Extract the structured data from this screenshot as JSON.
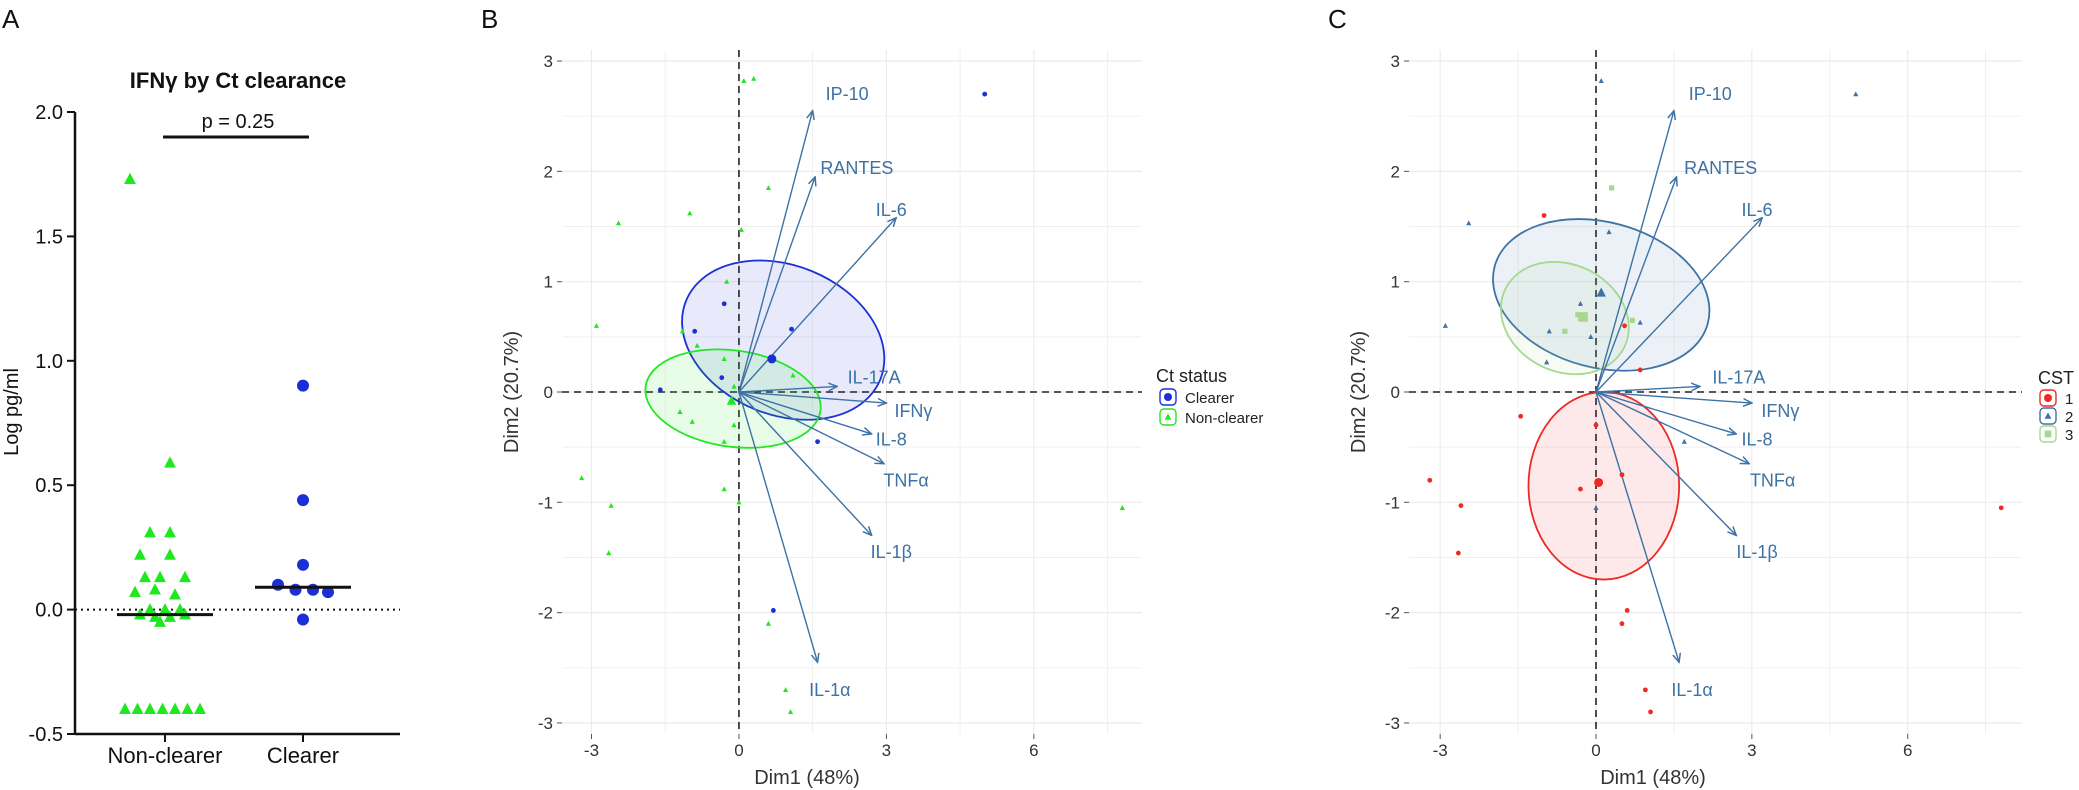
{
  "panels": {
    "a": "A",
    "b": "B",
    "c": "C"
  },
  "colors": {
    "green": "#1ee81e",
    "blue": "#1a2fd6",
    "arrow": "#3d72a5",
    "red": "#ee2a24",
    "cst2": "#3d72a5",
    "cst3": "#a6d98f",
    "black": "#111111"
  },
  "chart_data": [
    {
      "type": "scatter",
      "panel": "A",
      "title": "IFNγ by Ct clearance",
      "ylabel": "Log pg/ml",
      "xlabel": "",
      "ylim": [
        -0.5,
        2.0
      ],
      "yticks": [
        "-0.5",
        "0.0",
        "0.5",
        "1.0",
        "1.5",
        "2.0"
      ],
      "categories": [
        "Non-clearer",
        "Clearer"
      ],
      "annotation": "p = 0.25",
      "reference_line": 0.0,
      "series": [
        {
          "name": "Non-clearer",
          "marker": "triangle",
          "color": "green",
          "median": -0.02,
          "points": [
            [
              -0.7,
              1.73
            ],
            [
              0.1,
              0.59
            ],
            [
              -0.3,
              0.31
            ],
            [
              0.1,
              0.31
            ],
            [
              -0.5,
              0.22
            ],
            [
              0.1,
              0.22
            ],
            [
              -0.4,
              0.13
            ],
            [
              -0.1,
              0.13
            ],
            [
              0.4,
              0.13
            ],
            [
              -0.2,
              0.08
            ],
            [
              -0.6,
              0.07
            ],
            [
              0.2,
              0.06
            ],
            [
              -0.3,
              0.0
            ],
            [
              0.0,
              0.0
            ],
            [
              0.3,
              0.0
            ],
            [
              -0.5,
              -0.02
            ],
            [
              -0.2,
              -0.03
            ],
            [
              0.1,
              -0.03
            ],
            [
              -0.1,
              -0.05
            ],
            [
              0.4,
              -0.02
            ],
            [
              -0.8,
              -0.4
            ],
            [
              -0.55,
              -0.4
            ],
            [
              -0.3,
              -0.4
            ],
            [
              -0.05,
              -0.4
            ],
            [
              0.2,
              -0.4
            ],
            [
              0.45,
              -0.4
            ],
            [
              0.7,
              -0.4
            ]
          ]
        },
        {
          "name": "Clearer",
          "marker": "circle",
          "color": "blue",
          "median": 0.09,
          "points": [
            [
              0.0,
              0.9
            ],
            [
              0.0,
              0.44
            ],
            [
              0.0,
              0.18
            ],
            [
              -0.5,
              0.1
            ],
            [
              -0.15,
              0.08
            ],
            [
              0.2,
              0.08
            ],
            [
              0.5,
              0.07
            ],
            [
              0.0,
              -0.04
            ]
          ]
        }
      ]
    },
    {
      "type": "scatter",
      "panel": "B",
      "subtype": "pca-biplot",
      "xlabel": "Dim1 (48%)",
      "ylabel": "Dim2 (20.7%)",
      "xlim": [
        -3.6,
        8.2
      ],
      "ylim": [
        -3.1,
        3.1
      ],
      "xticks": [
        "-3",
        "0",
        "3",
        "6"
      ],
      "yticks": [
        "-3",
        "-2",
        "-1",
        "0",
        "1",
        "2",
        "3"
      ],
      "legend_title": "Ct status",
      "legend": [
        "Clearer",
        "Non-clearer"
      ],
      "arrows": [
        {
          "label": "IP-10",
          "x": 1.5,
          "y": 2.55,
          "lx": 2.2,
          "ly": 2.7
        },
        {
          "label": "RANTES",
          "x": 1.55,
          "y": 1.95,
          "lx": 2.4,
          "ly": 2.03
        },
        {
          "label": "IL-6",
          "x": 3.2,
          "y": 1.58,
          "lx": 3.1,
          "ly": 1.65
        },
        {
          "label": "IL-17A",
          "x": 2.0,
          "y": 0.05,
          "lx": 2.75,
          "ly": 0.13
        },
        {
          "label": "IFNγ",
          "x": 3.0,
          "y": -0.1,
          "lx": 3.55,
          "ly": -0.17
        },
        {
          "label": "IL-8",
          "x": 2.7,
          "y": -0.38,
          "lx": 3.1,
          "ly": -0.43
        },
        {
          "label": "TNFα",
          "x": 2.95,
          "y": -0.65,
          "lx": 3.4,
          "ly": -0.8
        },
        {
          "label": "IL-1β",
          "x": 2.7,
          "y": -1.3,
          "lx": 3.1,
          "ly": -1.45
        },
        {
          "label": "IL-1α",
          "x": 1.6,
          "y": -2.45,
          "lx": 1.85,
          "ly": -2.7
        }
      ],
      "ellipses": [
        {
          "group": "Clearer",
          "cx": 0.9,
          "cy": 0.47,
          "rx": 1.52,
          "ry": 0.95,
          "angle": -68
        },
        {
          "group": "Non-clearer",
          "cx": -0.12,
          "cy": -0.06,
          "rx": 0.98,
          "ry": 0.8,
          "angle": -82
        }
      ],
      "series": [
        {
          "name": "Clearer",
          "marker": "circle",
          "color": "blue",
          "points": [
            [
              -1.6,
              0.02
            ],
            [
              -0.9,
              0.55
            ],
            [
              -0.3,
              0.8
            ],
            [
              -0.35,
              0.13
            ],
            [
              0.65,
              0.3
            ],
            [
              1.07,
              0.57
            ],
            [
              1.6,
              -0.45
            ],
            [
              0.7,
              -1.98
            ],
            [
              5.0,
              2.7
            ]
          ],
          "centroid": [
            0.67,
            0.3
          ]
        },
        {
          "name": "Non-clearer",
          "marker": "triangle",
          "color": "green",
          "points": [
            [
              0.1,
              2.82
            ],
            [
              0.3,
              2.84
            ],
            [
              0.6,
              1.85
            ],
            [
              -1.0,
              1.62
            ],
            [
              -2.45,
              1.53
            ],
            [
              0.05,
              1.47
            ],
            [
              -0.25,
              1.0
            ],
            [
              -2.9,
              0.6
            ],
            [
              -1.15,
              0.55
            ],
            [
              -0.85,
              0.42
            ],
            [
              -0.3,
              0.3
            ],
            [
              -0.1,
              0.05
            ],
            [
              -1.2,
              -0.18
            ],
            [
              -0.95,
              -0.27
            ],
            [
              -0.1,
              -0.3
            ],
            [
              -0.3,
              -0.45
            ],
            [
              -3.2,
              -0.78
            ],
            [
              -0.3,
              -0.88
            ],
            [
              -2.6,
              -1.03
            ],
            [
              -2.65,
              -1.46
            ],
            [
              0.0,
              -1.0
            ],
            [
              0.6,
              -2.1
            ],
            [
              0.95,
              -2.7
            ],
            [
              1.05,
              -2.9
            ],
            [
              7.8,
              -1.05
            ],
            [
              1.1,
              0.15
            ]
          ],
          "centroid": [
            -0.15,
            -0.08
          ]
        }
      ]
    },
    {
      "type": "scatter",
      "panel": "C",
      "subtype": "pca-biplot",
      "xlabel": "Dim1 (48%)",
      "ylabel": "Dim2 (20.7%)",
      "xlim": [
        -3.6,
        8.2
      ],
      "ylim": [
        -3.1,
        3.1
      ],
      "xticks": [
        "-3",
        "0",
        "3",
        "6"
      ],
      "yticks": [
        "-3",
        "-2",
        "-1",
        "0",
        "1",
        "2",
        "3"
      ],
      "legend_title": "CST",
      "legend": [
        "1",
        "2",
        "3"
      ],
      "ellipses": [
        {
          "group": "1",
          "cx": 0.15,
          "cy": -0.85,
          "rx": 1.45,
          "ry": 0.85,
          "angle": 0
        },
        {
          "group": "2",
          "cx": 0.1,
          "cy": 0.88,
          "rx": 1.4,
          "ry": 1.0,
          "angle": -75
        },
        {
          "group": "3",
          "cx": -0.6,
          "cy": 0.67,
          "rx": 1.03,
          "ry": 0.6,
          "angle": -64
        }
      ],
      "series": [
        {
          "name": "1",
          "marker": "circle",
          "color": "red",
          "points": [
            [
              -1.0,
              1.6
            ],
            [
              -3.2,
              -0.8
            ],
            [
              -2.6,
              -1.03
            ],
            [
              -2.65,
              -1.46
            ],
            [
              -1.45,
              -0.22
            ],
            [
              -0.3,
              -0.88
            ],
            [
              0.0,
              -0.3
            ],
            [
              0.55,
              0.6
            ],
            [
              0.85,
              0.2
            ],
            [
              0.5,
              -0.75
            ],
            [
              0.5,
              -2.1
            ],
            [
              0.6,
              -1.98
            ],
            [
              0.95,
              -2.7
            ],
            [
              1.05,
              -2.9
            ],
            [
              7.8,
              -1.05
            ]
          ],
          "centroid": [
            0.05,
            -0.82
          ]
        },
        {
          "name": "2",
          "marker": "triangle",
          "color": "cst2",
          "points": [
            [
              0.1,
              2.82
            ],
            [
              -2.45,
              1.53
            ],
            [
              5.0,
              2.7
            ],
            [
              -0.3,
              0.8
            ],
            [
              0.25,
              1.45
            ],
            [
              -0.95,
              0.27
            ],
            [
              -2.9,
              0.6
            ],
            [
              -0.9,
              0.55
            ],
            [
              0.0,
              -1.05
            ],
            [
              0.85,
              0.63
            ],
            [
              1.7,
              -0.45
            ],
            [
              -0.1,
              0.5
            ]
          ],
          "centroid": [
            0.1,
            0.9
          ]
        },
        {
          "name": "3",
          "marker": "square",
          "color": "cst3",
          "points": [
            [
              0.3,
              1.85
            ],
            [
              0.7,
              0.65
            ],
            [
              -0.6,
              0.55
            ],
            [
              -0.35,
              0.7
            ]
          ],
          "centroid": [
            -0.25,
            0.68
          ]
        }
      ]
    }
  ]
}
